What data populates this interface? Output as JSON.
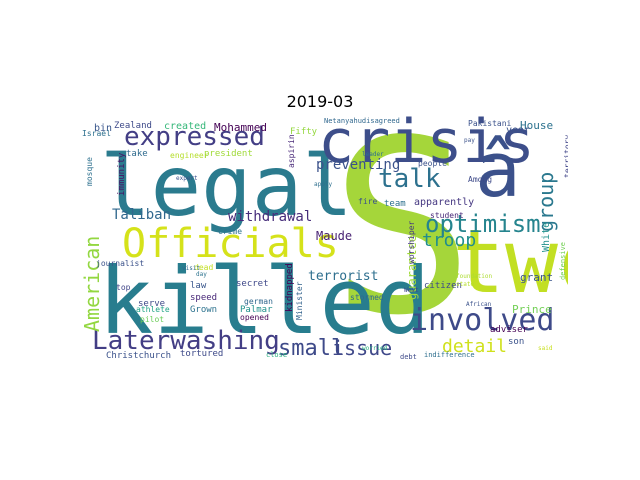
{
  "figure": {
    "title": "2019-03"
  },
  "words": [
    "S",
    "two",
    "killed",
    "legal",
    "crisis",
    "Officials",
    "â",
    "involved",
    "expressed",
    "optimism",
    "talk",
    "Laterwashing",
    "small",
    "issue",
    "group",
    "detail",
    "American",
    "withdrawal",
    "troop",
    "Taliban",
    "preventing",
    "guarantee",
    "terrorist",
    "Maude",
    "Prince",
    "grant",
    "White",
    "House",
    "year",
    "Mohammed",
    "created",
    "bin",
    "Zealand",
    "Fifty",
    "Israel",
    "immunity",
    "take",
    "engineer",
    "president",
    "apparently",
    "team",
    "fire",
    "stormed",
    "people",
    "student",
    "Among",
    "citizen",
    "adviser",
    "son",
    "worshiper",
    "Minister",
    "kidnapped",
    "secret",
    "law",
    "speed",
    "serve",
    "journalist",
    "top",
    "mosque",
    "athlete",
    "pilot",
    "Grown",
    "german",
    "Palmar",
    "opened",
    "dead",
    "tortured",
    "Christchurch",
    "Crime",
    "aspirin",
    "Pakistani",
    "Netanyahudisagreed",
    "territory",
    "defensive",
    "indifference",
    "debt",
    "close",
    "visit",
    "day",
    "expert",
    "apply",
    "African",
    "West",
    "foundation",
    "state",
    "said",
    "leader",
    "pay",
    "worried"
  ]
}
